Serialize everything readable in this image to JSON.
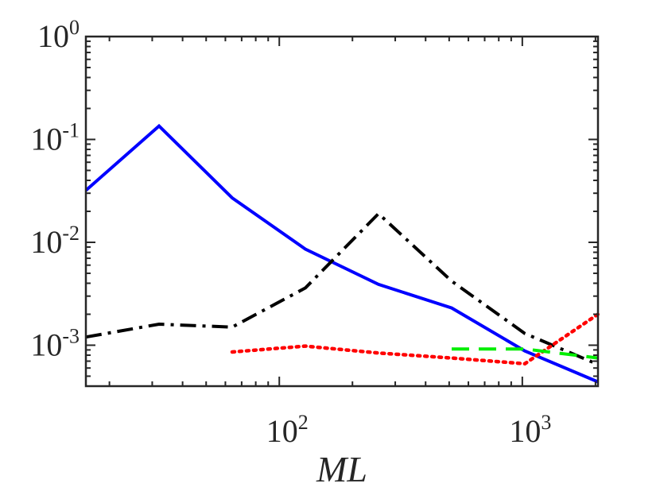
{
  "chart_data": {
    "type": "line",
    "title": "",
    "xlabel": "ML",
    "ylabel": "",
    "xscale": "log",
    "yscale": "log",
    "xlim": [
      16,
      2048
    ],
    "ylim": [
      0.0004,
      1
    ],
    "x_ticks": [
      {
        "value": 100,
        "base": "10",
        "exp": "2"
      },
      {
        "value": 1000,
        "base": "10",
        "exp": "3"
      }
    ],
    "y_ticks": [
      {
        "value": 1,
        "base": "10",
        "exp": "0"
      },
      {
        "value": 0.1,
        "base": "10",
        "exp": "-1"
      },
      {
        "value": 0.01,
        "base": "10",
        "exp": "-2"
      },
      {
        "value": 0.001,
        "base": "10",
        "exp": "-3"
      }
    ],
    "series": [
      {
        "name": "blue-solid",
        "color": "#0000ff",
        "style": "solid",
        "x": [
          16,
          32,
          64,
          128,
          256,
          512,
          1024,
          2048
        ],
        "y": [
          0.032,
          0.135,
          0.027,
          0.0086,
          0.0039,
          0.0023,
          0.00088,
          0.00044
        ]
      },
      {
        "name": "black-dashdot",
        "color": "#000000",
        "style": "dashdot",
        "x": [
          16,
          32,
          64,
          128,
          256,
          512,
          1024,
          2048
        ],
        "y": [
          0.0012,
          0.0016,
          0.0015,
          0.0036,
          0.019,
          0.0042,
          0.0013,
          0.00065
        ]
      },
      {
        "name": "red-dotted",
        "color": "#ff0000",
        "style": "dotted",
        "x": [
          64,
          128,
          256,
          512,
          1024,
          2048
        ],
        "y": [
          0.00086,
          0.00098,
          0.00084,
          0.00075,
          0.00066,
          0.002
        ]
      },
      {
        "name": "green-dashed",
        "color": "#00ee00",
        "style": "dashed",
        "x": [
          512,
          1024,
          2048
        ],
        "y": [
          0.00092,
          0.00092,
          0.00075
        ]
      }
    ]
  }
}
